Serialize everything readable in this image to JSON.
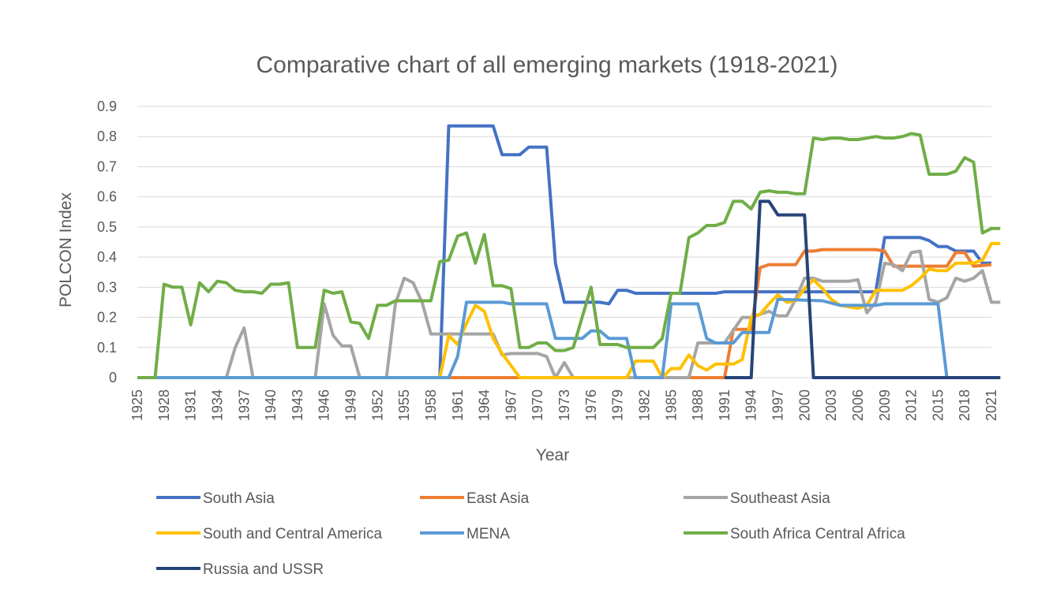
{
  "chart_data": {
    "type": "line",
    "title": "Comparative chart of all emerging markets (1918-2021)",
    "xlabel": "Year",
    "ylabel": "POLCON Index",
    "x_start": 1925,
    "x_end": 2021,
    "ylim": [
      0,
      0.9
    ],
    "y_ticks": [
      "0",
      "0.1",
      "0.2",
      "0.3",
      "0.4",
      "0.5",
      "0.6",
      "0.7",
      "0.8",
      "0.9"
    ],
    "x_ticks": [
      "1925",
      "1928",
      "1931",
      "1934",
      "1937",
      "1940",
      "1943",
      "1946",
      "1949",
      "1952",
      "1955",
      "1958",
      "1961",
      "1964",
      "1967",
      "1970",
      "1973",
      "1976",
      "1979",
      "1982",
      "1985",
      "1988",
      "1991",
      "1994",
      "1997",
      "2000",
      "2003",
      "2006",
      "2009",
      "2012",
      "2015",
      "2018",
      "2021"
    ],
    "grid": "horizontal",
    "legend_position": "bottom",
    "series": [
      {
        "name": "South Asia",
        "color": "#4472C4",
        "points": [
          [
            1925,
            0
          ],
          [
            1959,
            0
          ],
          [
            1960,
            0.835
          ],
          [
            1965,
            0.835
          ],
          [
            1966,
            0.74
          ],
          [
            1968,
            0.74
          ],
          [
            1969,
            0.765
          ],
          [
            1971,
            0.765
          ],
          [
            1972,
            0.38
          ],
          [
            1973,
            0.25
          ],
          [
            1977,
            0.25
          ],
          [
            1978,
            0.245
          ],
          [
            1979,
            0.29
          ],
          [
            1980,
            0.29
          ],
          [
            1981,
            0.28
          ],
          [
            1990,
            0.28
          ],
          [
            1991,
            0.285
          ],
          [
            2008,
            0.285
          ],
          [
            2009,
            0.465
          ],
          [
            2013,
            0.465
          ],
          [
            2014,
            0.455
          ],
          [
            2015,
            0.435
          ],
          [
            2016,
            0.435
          ],
          [
            2017,
            0.42
          ],
          [
            2019,
            0.42
          ],
          [
            2020,
            0.38
          ],
          [
            2021,
            0.38
          ]
        ]
      },
      {
        "name": "East Asia",
        "color": "#ED7D31",
        "points": [
          [
            1960,
            0
          ],
          [
            1967,
            0
          ],
          [
            1988,
            0
          ],
          [
            1991,
            0
          ],
          [
            1992,
            0.16
          ],
          [
            1994,
            0.16
          ],
          [
            1995,
            0.365
          ],
          [
            1996,
            0.375
          ],
          [
            1999,
            0.375
          ],
          [
            2000,
            0.42
          ],
          [
            2001,
            0.42
          ],
          [
            2002,
            0.425
          ],
          [
            2008,
            0.425
          ],
          [
            2009,
            0.42
          ],
          [
            2010,
            0.37
          ],
          [
            2016,
            0.37
          ],
          [
            2017,
            0.415
          ],
          [
            2018,
            0.415
          ],
          [
            2019,
            0.37
          ],
          [
            2021,
            0.375
          ]
        ]
      },
      {
        "name": "Southeast Asia",
        "color": "#A5A5A5",
        "points": [
          [
            1925,
            0
          ],
          [
            1935,
            0
          ],
          [
            1936,
            0.1
          ],
          [
            1937,
            0.165
          ],
          [
            1938,
            0
          ],
          [
            1945,
            0
          ],
          [
            1946,
            0.245
          ],
          [
            1947,
            0.14
          ],
          [
            1948,
            0.105
          ],
          [
            1949,
            0.105
          ],
          [
            1950,
            0
          ],
          [
            1953,
            0
          ],
          [
            1954,
            0.245
          ],
          [
            1955,
            0.33
          ],
          [
            1956,
            0.315
          ],
          [
            1957,
            0.25
          ],
          [
            1958,
            0.145
          ],
          [
            1965,
            0.145
          ],
          [
            1966,
            0.075
          ],
          [
            1967,
            0.08
          ],
          [
            1970,
            0.08
          ],
          [
            1971,
            0.07
          ],
          [
            1972,
            0
          ],
          [
            1973,
            0.05
          ],
          [
            1974,
            0
          ],
          [
            1975,
            0
          ],
          [
            1983,
            0
          ],
          [
            1986,
            0
          ],
          [
            1987,
            0
          ],
          [
            1988,
            0.115
          ],
          [
            1991,
            0.115
          ],
          [
            1993,
            0.2
          ],
          [
            1994,
            0.2
          ],
          [
            1995,
            0.21
          ],
          [
            1996,
            0.22
          ],
          [
            1997,
            0.205
          ],
          [
            1998,
            0.205
          ],
          [
            1999,
            0.26
          ],
          [
            2000,
            0.33
          ],
          [
            2001,
            0.33
          ],
          [
            2002,
            0.32
          ],
          [
            2005,
            0.32
          ],
          [
            2006,
            0.325
          ],
          [
            2007,
            0.215
          ],
          [
            2008,
            0.25
          ],
          [
            2009,
            0.38
          ],
          [
            2010,
            0.375
          ],
          [
            2011,
            0.355
          ],
          [
            2012,
            0.415
          ],
          [
            2013,
            0.42
          ],
          [
            2014,
            0.26
          ],
          [
            2015,
            0.25
          ],
          [
            2016,
            0.265
          ],
          [
            2017,
            0.33
          ],
          [
            2018,
            0.32
          ],
          [
            2019,
            0.33
          ],
          [
            2020,
            0.355
          ],
          [
            2021,
            0.25
          ],
          [
            2022,
            0.25
          ]
        ]
      },
      {
        "name": "South and Central America",
        "color": "#FFC000",
        "points": [
          [
            1959,
            0
          ],
          [
            1960,
            0.14
          ],
          [
            1961,
            0.11
          ],
          [
            1962,
            0.18
          ],
          [
            1963,
            0.24
          ],
          [
            1964,
            0.22
          ],
          [
            1965,
            0.13
          ],
          [
            1966,
            0.08
          ],
          [
            1967,
            0.04
          ],
          [
            1968,
            0
          ],
          [
            1980,
            0
          ],
          [
            1981,
            0.055
          ],
          [
            1983,
            0.055
          ],
          [
            1984,
            0
          ],
          [
            1985,
            0.03
          ],
          [
            1986,
            0.03
          ],
          [
            1987,
            0.075
          ],
          [
            1988,
            0.04
          ],
          [
            1989,
            0.025
          ],
          [
            1990,
            0.045
          ],
          [
            1992,
            0.045
          ],
          [
            1993,
            0.06
          ],
          [
            1994,
            0.2
          ],
          [
            1995,
            0.21
          ],
          [
            1996,
            0.245
          ],
          [
            1997,
            0.275
          ],
          [
            1998,
            0.25
          ],
          [
            1999,
            0.255
          ],
          [
            2000,
            0.295
          ],
          [
            2001,
            0.325
          ],
          [
            2002,
            0.295
          ],
          [
            2003,
            0.26
          ],
          [
            2004,
            0.24
          ],
          [
            2005,
            0.235
          ],
          [
            2006,
            0.23
          ],
          [
            2007,
            0.24
          ],
          [
            2008,
            0.29
          ],
          [
            2009,
            0.29
          ],
          [
            2011,
            0.29
          ],
          [
            2012,
            0.305
          ],
          [
            2013,
            0.33
          ],
          [
            2014,
            0.36
          ],
          [
            2015,
            0.355
          ],
          [
            2016,
            0.355
          ],
          [
            2017,
            0.38
          ],
          [
            2019,
            0.38
          ],
          [
            2020,
            0.39
          ],
          [
            2021,
            0.445
          ],
          [
            2022,
            0.445
          ]
        ]
      },
      {
        "name": "MENA",
        "color": "#5B9BD5",
        "points": [
          [
            1925,
            0
          ],
          [
            1960,
            0
          ],
          [
            1961,
            0.07
          ],
          [
            1962,
            0.25
          ],
          [
            1963,
            0.25
          ],
          [
            1966,
            0.25
          ],
          [
            1967,
            0.245
          ],
          [
            1971,
            0.245
          ],
          [
            1972,
            0.13
          ],
          [
            1975,
            0.13
          ],
          [
            1976,
            0.155
          ],
          [
            1977,
            0.155
          ],
          [
            1978,
            0.13
          ],
          [
            1980,
            0.13
          ],
          [
            1981,
            0
          ],
          [
            1984,
            0
          ],
          [
            1985,
            0.245
          ],
          [
            1988,
            0.245
          ],
          [
            1989,
            0.13
          ],
          [
            1990,
            0.115
          ],
          [
            1992,
            0.115
          ],
          [
            1993,
            0.15
          ],
          [
            1994,
            0.15
          ],
          [
            1996,
            0.15
          ],
          [
            1997,
            0.26
          ],
          [
            2002,
            0.255
          ],
          [
            2004,
            0.24
          ],
          [
            2008,
            0.24
          ],
          [
            2009,
            0.245
          ],
          [
            2015,
            0.245
          ],
          [
            2016,
            0
          ],
          [
            2022,
            0
          ]
        ]
      },
      {
        "name": "South Africa Central Africa",
        "color": "#70AD47",
        "points": [
          [
            1925,
            0
          ],
          [
            1927,
            0
          ],
          [
            1928,
            0.31
          ],
          [
            1929,
            0.3
          ],
          [
            1930,
            0.3
          ],
          [
            1931,
            0.175
          ],
          [
            1932,
            0.315
          ],
          [
            1933,
            0.285
          ],
          [
            1934,
            0.32
          ],
          [
            1935,
            0.315
          ],
          [
            1936,
            0.29
          ],
          [
            1937,
            0.285
          ],
          [
            1938,
            0.285
          ],
          [
            1939,
            0.28
          ],
          [
            1940,
            0.31
          ],
          [
            1941,
            0.31
          ],
          [
            1942,
            0.315
          ],
          [
            1943,
            0.1
          ],
          [
            1944,
            0.1
          ],
          [
            1945,
            0.1
          ],
          [
            1946,
            0.29
          ],
          [
            1947,
            0.28
          ],
          [
            1948,
            0.285
          ],
          [
            1949,
            0.185
          ],
          [
            1950,
            0.18
          ],
          [
            1951,
            0.13
          ],
          [
            1952,
            0.24
          ],
          [
            1953,
            0.24
          ],
          [
            1954,
            0.255
          ],
          [
            1958,
            0.255
          ],
          [
            1959,
            0.385
          ],
          [
            1960,
            0.39
          ],
          [
            1961,
            0.47
          ],
          [
            1962,
            0.48
          ],
          [
            1963,
            0.38
          ],
          [
            1964,
            0.475
          ],
          [
            1965,
            0.305
          ],
          [
            1966,
            0.305
          ],
          [
            1967,
            0.295
          ],
          [
            1968,
            0.1
          ],
          [
            1969,
            0.1
          ],
          [
            1970,
            0.115
          ],
          [
            1971,
            0.115
          ],
          [
            1972,
            0.09
          ],
          [
            1973,
            0.09
          ],
          [
            1974,
            0.1
          ],
          [
            1975,
            0.2
          ],
          [
            1976,
            0.3
          ],
          [
            1977,
            0.11
          ],
          [
            1978,
            0.11
          ],
          [
            1979,
            0.11
          ],
          [
            1980,
            0.1
          ],
          [
            1983,
            0.1
          ],
          [
            1984,
            0.13
          ],
          [
            1985,
            0.28
          ],
          [
            1986,
            0.28
          ],
          [
            1987,
            0.465
          ],
          [
            1988,
            0.48
          ],
          [
            1989,
            0.505
          ],
          [
            1990,
            0.505
          ],
          [
            1991,
            0.515
          ],
          [
            1992,
            0.585
          ],
          [
            1993,
            0.585
          ],
          [
            1994,
            0.56
          ],
          [
            1995,
            0.615
          ],
          [
            1996,
            0.62
          ],
          [
            1997,
            0.615
          ],
          [
            1998,
            0.615
          ],
          [
            1999,
            0.61
          ],
          [
            2000,
            0.61
          ],
          [
            2001,
            0.795
          ],
          [
            2002,
            0.79
          ],
          [
            2003,
            0.795
          ],
          [
            2004,
            0.795
          ],
          [
            2005,
            0.79
          ],
          [
            2006,
            0.79
          ],
          [
            2007,
            0.795
          ],
          [
            2008,
            0.8
          ],
          [
            2009,
            0.795
          ],
          [
            2010,
            0.795
          ],
          [
            2011,
            0.8
          ],
          [
            2012,
            0.81
          ],
          [
            2013,
            0.805
          ],
          [
            2014,
            0.675
          ],
          [
            2015,
            0.675
          ],
          [
            2016,
            0.675
          ],
          [
            2017,
            0.685
          ],
          [
            2018,
            0.73
          ],
          [
            2019,
            0.715
          ],
          [
            2020,
            0.48
          ],
          [
            2021,
            0.495
          ],
          [
            2022,
            0.495
          ]
        ]
      },
      {
        "name": "Russia and USSR",
        "color": "#264478",
        "points": [
          [
            1991,
            0
          ],
          [
            1994,
            0
          ],
          [
            1995,
            0.585
          ],
          [
            1996,
            0.585
          ],
          [
            1997,
            0.54
          ],
          [
            2000,
            0.54
          ],
          [
            2001,
            0
          ],
          [
            2022,
            0
          ]
        ]
      }
    ]
  }
}
